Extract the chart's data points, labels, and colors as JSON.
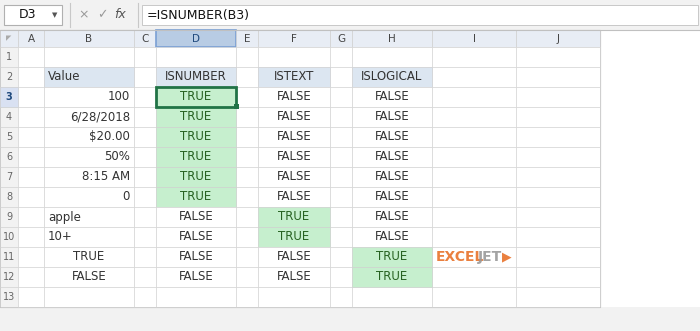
{
  "formula_bar_cell": "D3",
  "formula_bar_formula": "=ISNUMBER(B3)",
  "values_B": [
    "Value",
    "100",
    "6/28/2018",
    "$20.00",
    "50%",
    "8:15 AM",
    "0",
    "apple",
    "10+",
    "TRUE",
    "FALSE"
  ],
  "values_D": [
    "ISNUMBER",
    "TRUE",
    "TRUE",
    "TRUE",
    "TRUE",
    "TRUE",
    "TRUE",
    "FALSE",
    "FALSE",
    "FALSE",
    "FALSE"
  ],
  "values_F": [
    "ISTEXT",
    "FALSE",
    "FALSE",
    "FALSE",
    "FALSE",
    "FALSE",
    "FALSE",
    "TRUE",
    "TRUE",
    "FALSE",
    "FALSE"
  ],
  "values_H": [
    "ISLOGICAL",
    "FALSE",
    "FALSE",
    "FALSE",
    "FALSE",
    "FALSE",
    "FALSE",
    "FALSE",
    "FALSE",
    "TRUE",
    "TRUE"
  ],
  "B_align": [
    "left",
    "right",
    "right",
    "right",
    "right",
    "right",
    "right",
    "left",
    "left",
    "center",
    "center"
  ],
  "green_bg": "#c6efce",
  "green_fg": "#276221",
  "white_bg": "#ffffff",
  "dark_fg": "#333333",
  "header_label_bg": "#dce6f1",
  "col_header_bg": "#e8edf5",
  "col_header_selected_bg": "#b8cce4",
  "col_header_selected_fg": "#1f497d",
  "col_header_fg": "#444444",
  "row_num_bg": "#f2f2f2",
  "row_num_selected_bg": "#d9e1f2",
  "sheet_bg": "#ffffff",
  "formula_bar_bg": "#f2f2f2",
  "border_color": "#d0d0d0",
  "outer_border": "#a0a0a0",
  "exceljet_orange": "#e8722a",
  "exceljet_gray": "#999999"
}
